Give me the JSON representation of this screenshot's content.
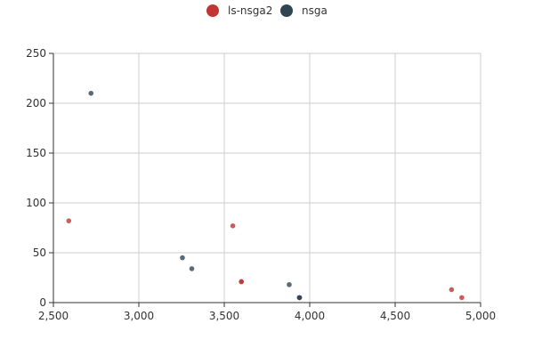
{
  "chart_data": {
    "type": "scatter",
    "title": "",
    "xlabel": "",
    "ylabel": "",
    "xlim": [
      2500,
      5000
    ],
    "ylim": [
      0,
      250
    ],
    "x_ticks": [
      2500,
      3000,
      3500,
      4000,
      4500,
      5000
    ],
    "x_tick_labels": [
      "2,500",
      "3,000",
      "3,500",
      "4,000",
      "4,500",
      "5,000"
    ],
    "y_ticks": [
      0,
      50,
      100,
      150,
      200,
      250
    ],
    "y_tick_labels": [
      "0",
      "50",
      "100",
      "150",
      "200",
      "250"
    ],
    "grid": true,
    "legend_position": "top-center",
    "series": [
      {
        "name": "ls-nsga2",
        "color": "#c23531",
        "points": [
          {
            "x": 2590,
            "y": 82
          },
          {
            "x": 3550,
            "y": 77
          },
          {
            "x": 3600,
            "y": 21
          },
          {
            "x": 3600,
            "y": 21
          },
          {
            "x": 3940,
            "y": 5
          },
          {
            "x": 4830,
            "y": 13
          },
          {
            "x": 4890,
            "y": 5
          }
        ]
      },
      {
        "name": "nsga",
        "color": "#2f4554",
        "points": [
          {
            "x": 2720,
            "y": 210
          },
          {
            "x": 3255,
            "y": 45
          },
          {
            "x": 3310,
            "y": 34
          },
          {
            "x": 3880,
            "y": 18
          },
          {
            "x": 3940,
            "y": 5
          },
          {
            "x": 3940,
            "y": 5
          }
        ]
      }
    ]
  }
}
